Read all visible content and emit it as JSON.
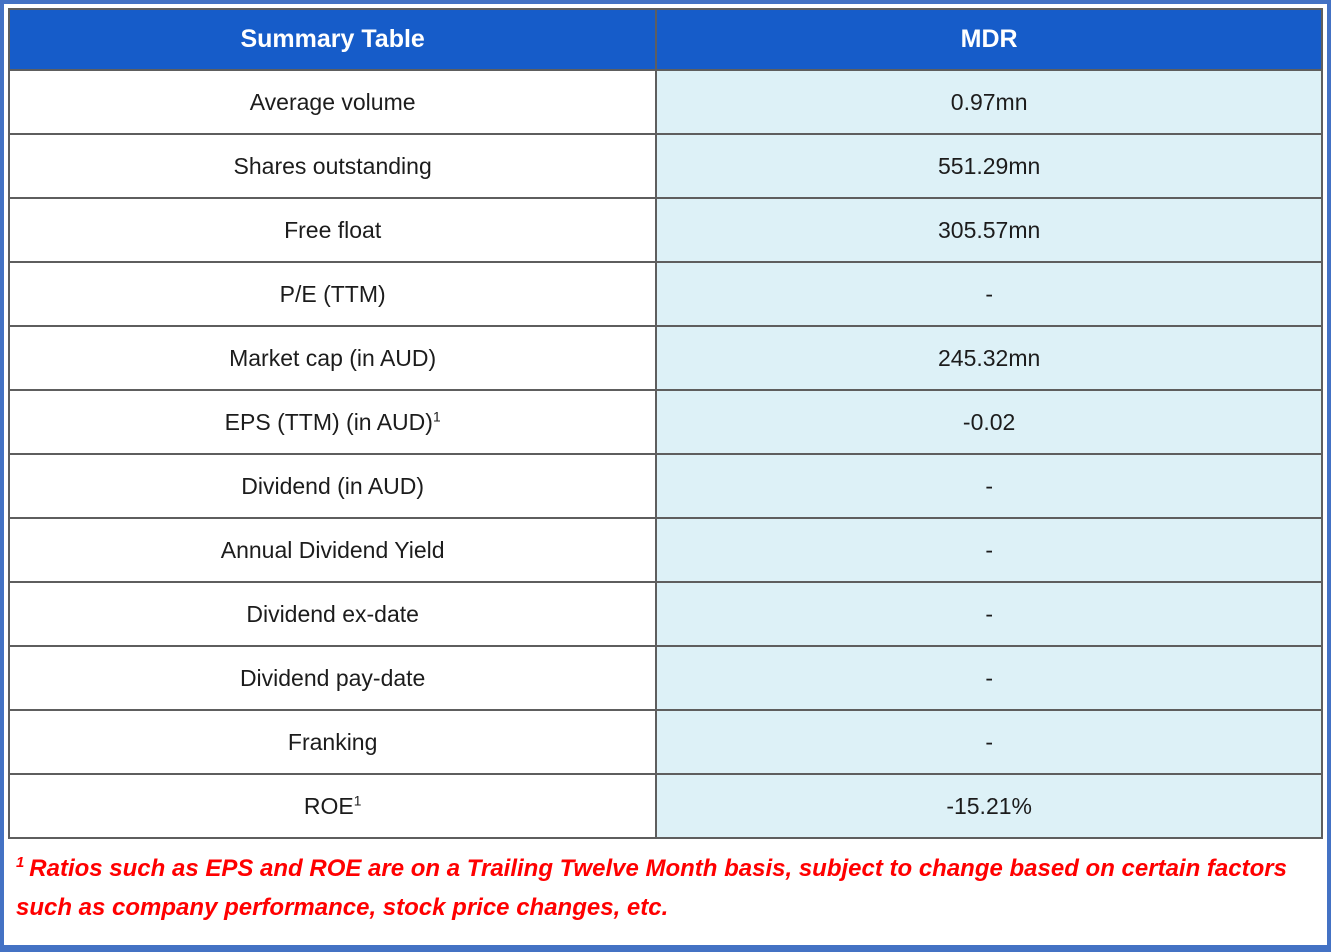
{
  "table": {
    "header": {
      "col1": "Summary Table",
      "col2": "MDR"
    },
    "rows": [
      {
        "label": "Average volume",
        "sup": "",
        "value": "0.97mn"
      },
      {
        "label": "Shares outstanding",
        "sup": "",
        "value": "551.29mn"
      },
      {
        "label": "Free float",
        "sup": "",
        "value": "305.57mn"
      },
      {
        "label": "P/E (TTM)",
        "sup": "",
        "value": "-"
      },
      {
        "label": "Market cap (in AUD)",
        "sup": "",
        "value": "245.32mn"
      },
      {
        "label": "EPS (TTM) (in AUD)",
        "sup": "1",
        "value": "-0.02"
      },
      {
        "label": "Dividend (in AUD)",
        "sup": "",
        "value": "-"
      },
      {
        "label": "Annual Dividend Yield",
        "sup": "",
        "value": "-"
      },
      {
        "label": "Dividend ex-date",
        "sup": "",
        "value": "-"
      },
      {
        "label": "Dividend pay-date",
        "sup": "",
        "value": "-"
      },
      {
        "label": "Franking",
        "sup": "",
        "value": "-"
      },
      {
        "label": "ROE",
        "sup": "1",
        "value": "-15.21%"
      }
    ]
  },
  "footnote": {
    "sup": "1",
    "text": "Ratios such as EPS and ROE are on a Trailing Twelve Month basis, subject to change based on certain factors such as company performance, stock price changes, etc."
  },
  "colors": {
    "header_bg": "#165CC9",
    "header_text": "#ffffff",
    "value_cell_bg": "#DDF1F7",
    "label_cell_bg": "#ffffff",
    "grid_line": "#5e5e5e",
    "outer_border": "#4472C4",
    "footnote_red": "#FF0000"
  }
}
